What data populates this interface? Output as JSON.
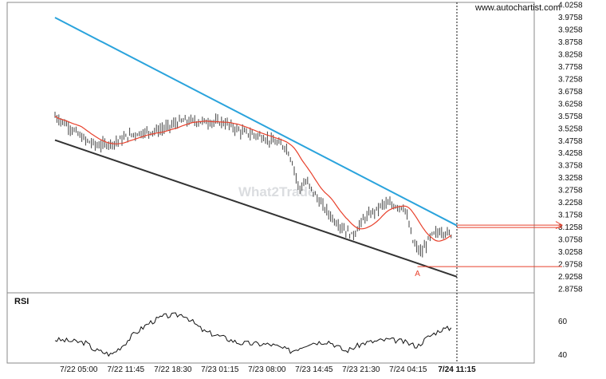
{
  "watermark": "www.autochartist.com",
  "center_watermark": "What2Trade",
  "rsi_label": "RSI",
  "time_now_label": "7/24 11:15",
  "chart_data": [
    {
      "type": "candlestick-line",
      "price_axis": {
        "ticks": [
          "4.0258",
          "3.9758",
          "3.9258",
          "3.8758",
          "3.8258",
          "3.7758",
          "3.7258",
          "3.6758",
          "3.6258",
          "3.5758",
          "3.5258",
          "3.4758",
          "3.4258",
          "3.3758",
          "3.3258",
          "3.2758",
          "3.2258",
          "3.1758",
          "3.1258",
          "3.0758",
          "3.0258",
          "2.9758",
          "2.9258",
          "2.8758"
        ],
        "min": 2.8758,
        "max": 4.0258
      },
      "time_axis": {
        "ticks": [
          "7/22 05:00",
          "7/22 11:45",
          "7/22 18:30",
          "7/23 01:15",
          "7/23 08:00",
          "7/23 14:45",
          "7/23 21:30",
          "7/24 04:15"
        ],
        "current": "7/24 11:15"
      },
      "moving_average_color": "#e8412c",
      "price_bar_color": "#444444",
      "resistance_line": {
        "color": "#2aa3dc",
        "start": [
          "7/22 01:35",
          3.974
        ],
        "end": [
          "7/24 11:15",
          3.132
        ]
      },
      "support_line": {
        "color": "#333333",
        "start": [
          "7/22 01:35",
          3.478
        ],
        "end": [
          "7/24 11:15",
          2.925
        ]
      },
      "breakout_level": {
        "color": "#e8412c",
        "value": 3.129
      },
      "point_marker": {
        "label": "A",
        "value": 2.966,
        "color": "#e8412c"
      },
      "price_anchors": [
        [
          "7/22 01:35",
          3.575
        ],
        [
          "7/22 03:45",
          3.53
        ],
        [
          "7/22 05:45",
          3.48
        ],
        [
          "7/22 07:45",
          3.455
        ],
        [
          "7/22 10:15",
          3.47
        ],
        [
          "7/22 12:30",
          3.5
        ],
        [
          "7/22 16:45",
          3.52
        ],
        [
          "7/22 19:45",
          3.555
        ],
        [
          "7/22 21:00",
          3.555
        ],
        [
          "7/23 01:45",
          3.55
        ],
        [
          "7/23 04:30",
          3.51
        ],
        [
          "7/23 07:00",
          3.495
        ],
        [
          "7/23 09:00",
          3.47
        ],
        [
          "7/23 10:45",
          3.45
        ],
        [
          "7/23 11:45",
          3.38
        ],
        [
          "7/23 12:35",
          3.28
        ],
        [
          "7/23 13:40",
          3.31
        ],
        [
          "7/23 15:45",
          3.22
        ],
        [
          "7/23 17:45",
          3.15
        ],
        [
          "7/23 19:00",
          3.12
        ],
        [
          "7/23 20:15",
          3.09
        ],
        [
          "7/23 21:55",
          3.16
        ],
        [
          "7/23 23:55",
          3.2
        ],
        [
          "7/24 00:40",
          3.22
        ],
        [
          "7/24 02:00",
          3.215
        ],
        [
          "7/24 03:45",
          3.205
        ],
        [
          "7/24 05:00",
          3.06
        ],
        [
          "7/24 06:10",
          3.02
        ],
        [
          "7/24 07:30",
          3.09
        ],
        [
          "7/24 08:55",
          3.11
        ],
        [
          "7/24 10:30",
          3.095
        ]
      ]
    },
    {
      "type": "line",
      "indicator": "RSI",
      "y_ticks": [
        "60",
        "40"
      ],
      "ylim": [
        35,
        77
      ],
      "color": "#111111",
      "anchors": [
        [
          "7/22 01:35",
          49
        ],
        [
          "7/22 04:05",
          48
        ],
        [
          "7/22 06:05",
          47
        ],
        [
          "7/22 07:10",
          43
        ],
        [
          "7/22 09:40",
          40
        ],
        [
          "7/22 11:25",
          46
        ],
        [
          "7/22 12:50",
          52
        ],
        [
          "7/22 15:05",
          59
        ],
        [
          "7/22 17:10",
          63
        ],
        [
          "7/22 20:05",
          64
        ],
        [
          "7/22 22:55",
          54
        ],
        [
          "7/23 01:15",
          51
        ],
        [
          "7/23 04:00",
          47
        ],
        [
          "7/23 08:40",
          46
        ],
        [
          "7/23 11:30",
          42
        ],
        [
          "7/23 14:05",
          47
        ],
        [
          "7/23 16:55",
          48
        ],
        [
          "7/23 19:15",
          42
        ],
        [
          "7/23 21:55",
          47
        ],
        [
          "7/24 01:20",
          49
        ],
        [
          "7/24 03:20",
          48
        ],
        [
          "7/24 05:35",
          45
        ],
        [
          "7/24 06:55",
          50
        ],
        [
          "7/24 08:55",
          55
        ],
        [
          "7/24 10:35",
          56
        ]
      ]
    }
  ]
}
